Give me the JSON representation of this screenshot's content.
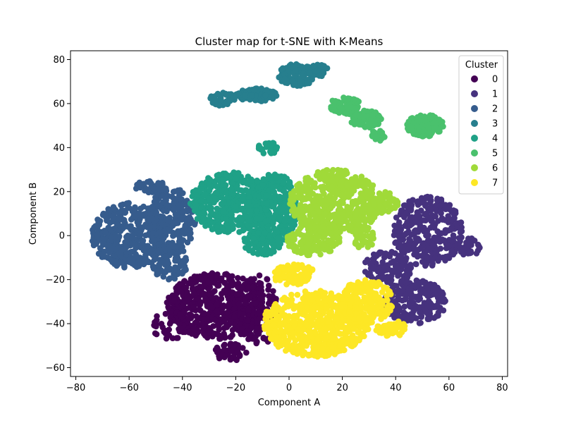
{
  "chart_data": {
    "type": "scatter",
    "title": "Cluster map for t-SNE with K-Means",
    "xlabel": "Component A",
    "ylabel": "Component B",
    "xlim": [
      -82,
      82
    ],
    "ylim": [
      -64,
      84
    ],
    "xticks": [
      -80,
      -60,
      -40,
      -20,
      0,
      20,
      40,
      60,
      80
    ],
    "yticks": [
      -60,
      -40,
      -20,
      0,
      20,
      40,
      60,
      80
    ],
    "grid": false,
    "legend": {
      "title": "Cluster",
      "placement": "top-right"
    },
    "series": [
      {
        "name": "0",
        "color": "#440154",
        "regions": [
          {
            "cx": -27,
            "cy": -32,
            "rx": 19,
            "ry": 15,
            "n": 480
          },
          {
            "cx": -12,
            "cy": -34,
            "rx": 9,
            "ry": 16,
            "n": 160
          },
          {
            "cx": -44,
            "cy": -40,
            "rx": 8,
            "ry": 7,
            "n": 60
          },
          {
            "cx": -22,
            "cy": -53,
            "rx": 6,
            "ry": 4,
            "n": 45
          }
        ]
      },
      {
        "name": "1",
        "color": "#46327e",
        "regions": [
          {
            "cx": 52,
            "cy": 2,
            "rx": 13,
            "ry": 16,
            "n": 300
          },
          {
            "cx": 47,
            "cy": -30,
            "rx": 12,
            "ry": 10,
            "n": 220
          },
          {
            "cx": 37,
            "cy": -15,
            "rx": 9,
            "ry": 8,
            "n": 110
          },
          {
            "cx": 66,
            "cy": -5,
            "rx": 7,
            "ry": 4,
            "n": 45
          }
        ]
      },
      {
        "name": "2",
        "color": "#365c8d",
        "regions": [
          {
            "cx": -60,
            "cy": 0,
            "rx": 14,
            "ry": 15,
            "n": 380
          },
          {
            "cx": -44,
            "cy": 7,
            "rx": 9,
            "ry": 15,
            "n": 200
          },
          {
            "cx": -45,
            "cy": -12,
            "rx": 7,
            "ry": 8,
            "n": 100
          },
          {
            "cx": -52,
            "cy": 22,
            "rx": 6,
            "ry": 3,
            "n": 35
          }
        ]
      },
      {
        "name": "3",
        "color": "#277f8e",
        "regions": [
          {
            "cx": 3,
            "cy": 73,
            "rx": 7,
            "ry": 5,
            "n": 110
          },
          {
            "cx": -12,
            "cy": 64,
            "rx": 8,
            "ry": 3,
            "n": 80
          },
          {
            "cx": -25,
            "cy": 62,
            "rx": 5,
            "ry": 3,
            "n": 50
          },
          {
            "cx": 11,
            "cy": 75,
            "rx": 4,
            "ry": 3,
            "n": 35
          }
        ]
      },
      {
        "name": "4",
        "color": "#1fa187",
        "regions": [
          {
            "cx": -22,
            "cy": 15,
            "rx": 15,
            "ry": 14,
            "n": 430
          },
          {
            "cx": -5,
            "cy": 12,
            "rx": 8,
            "ry": 17,
            "n": 250
          },
          {
            "cx": -10,
            "cy": -3,
            "rx": 7,
            "ry": 6,
            "n": 90
          },
          {
            "cx": -8,
            "cy": 40,
            "rx": 4,
            "ry": 3,
            "n": 25
          }
        ]
      },
      {
        "name": "5",
        "color": "#4ac16d",
        "regions": [
          {
            "cx": 51,
            "cy": 50,
            "rx": 7,
            "ry": 5,
            "n": 160
          },
          {
            "cx": 21,
            "cy": 59,
            "rx": 6,
            "ry": 4,
            "n": 80
          },
          {
            "cx": 29,
            "cy": 53,
            "rx": 6,
            "ry": 4,
            "n": 70
          },
          {
            "cx": 33,
            "cy": 45,
            "rx": 3,
            "ry": 3,
            "n": 20
          }
        ]
      },
      {
        "name": "6",
        "color": "#a0da39",
        "regions": [
          {
            "cx": 17,
            "cy": 15,
            "rx": 17,
            "ry": 15,
            "n": 520
          },
          {
            "cx": 9,
            "cy": -2,
            "rx": 10,
            "ry": 7,
            "n": 150
          },
          {
            "cx": 36,
            "cy": 15,
            "rx": 5,
            "ry": 5,
            "n": 50
          },
          {
            "cx": 28,
            "cy": -1,
            "rx": 5,
            "ry": 5,
            "n": 40
          }
        ]
      },
      {
        "name": "7",
        "color": "#fde725",
        "regions": [
          {
            "cx": 10,
            "cy": -40,
            "rx": 20,
            "ry": 15,
            "n": 640
          },
          {
            "cx": 29,
            "cy": -30,
            "rx": 10,
            "ry": 10,
            "n": 200
          },
          {
            "cx": 2,
            "cy": -18,
            "rx": 8,
            "ry": 5,
            "n": 90
          },
          {
            "cx": 38,
            "cy": -42,
            "rx": 6,
            "ry": 4,
            "n": 60
          }
        ]
      }
    ]
  }
}
